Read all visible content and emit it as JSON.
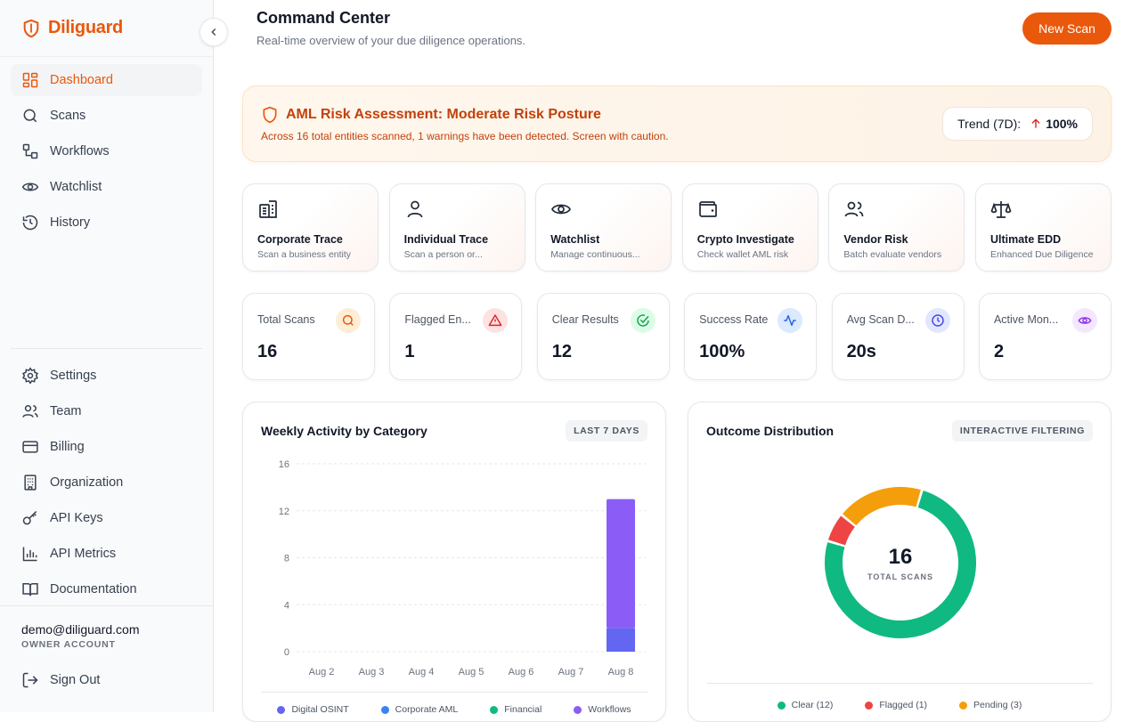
{
  "sidebar": {
    "brand": "Diliguard",
    "nav": [
      {
        "label": "Dashboard",
        "icon": "dashboard-icon",
        "active": true
      },
      {
        "label": "Scans",
        "icon": "search-icon"
      },
      {
        "label": "Workflows",
        "icon": "workflow-icon"
      },
      {
        "label": "Watchlist",
        "icon": "eye-icon"
      },
      {
        "label": "History",
        "icon": "history-icon"
      }
    ],
    "secondary": [
      {
        "label": "Settings",
        "icon": "gear-icon"
      },
      {
        "label": "Team",
        "icon": "team-icon"
      },
      {
        "label": "Billing",
        "icon": "credit-card-icon"
      },
      {
        "label": "Organization",
        "icon": "building-icon"
      },
      {
        "label": "API Keys",
        "icon": "key-icon"
      },
      {
        "label": "API Metrics",
        "icon": "bar-chart-icon"
      },
      {
        "label": "Documentation",
        "icon": "book-icon"
      }
    ],
    "user": {
      "email": "demo@diliguard.com",
      "role": "OWNER ACCOUNT"
    },
    "signout": "Sign Out"
  },
  "header": {
    "title": "Command Center",
    "subtitle": "Real-time overview of your due diligence operations.",
    "new_scan": "New Scan"
  },
  "alert": {
    "title": "AML Risk Assessment: Moderate Risk Posture",
    "description": "Across 16 total entities scanned, 1 warnings have been detected. Screen with caution.",
    "trend_label": "Trend (7D):",
    "trend_value": "100%"
  },
  "actions": [
    {
      "title": "Corporate Trace",
      "subtitle": "Scan a business entity",
      "icon": "building-icon"
    },
    {
      "title": "Individual Trace",
      "subtitle": "Scan a person or...",
      "icon": "person-icon"
    },
    {
      "title": "Watchlist",
      "subtitle": "Manage continuous...",
      "icon": "eye-icon"
    },
    {
      "title": "Crypto Investigate",
      "subtitle": "Check wallet AML risk",
      "icon": "wallet-icon"
    },
    {
      "title": "Vendor Risk",
      "subtitle": "Batch evaluate vendors",
      "icon": "users-icon"
    },
    {
      "title": "Ultimate EDD",
      "subtitle": "Enhanced Due Diligence",
      "icon": "scale-icon"
    }
  ],
  "stats": [
    {
      "label": "Total Scans",
      "value": "16",
      "icon": "search-icon",
      "color": "#ea580c",
      "bg": "#ffedd5"
    },
    {
      "label": "Flagged En...",
      "value": "1",
      "icon": "alert-triangle-icon",
      "color": "#dc2626",
      "bg": "#fee2e2"
    },
    {
      "label": "Clear Results",
      "value": "12",
      "icon": "check-circle-icon",
      "color": "#16a34a",
      "bg": "#dcfce7"
    },
    {
      "label": "Success Rate",
      "value": "100%",
      "icon": "activity-icon",
      "color": "#2563eb",
      "bg": "#dbeafe"
    },
    {
      "label": "Avg Scan D...",
      "value": "20s",
      "icon": "clock-icon",
      "color": "#4f46e5",
      "bg": "#e0e7ff"
    },
    {
      "label": "Active Mon...",
      "value": "2",
      "icon": "eye-icon",
      "color": "#9333ea",
      "bg": "#f3e8ff"
    }
  ],
  "weekly": {
    "title": "Weekly Activity by Category",
    "badge": "LAST 7 DAYS"
  },
  "outcome": {
    "title": "Outcome Distribution",
    "badge": "INTERACTIVE FILTERING",
    "center_value": "16",
    "center_label": "TOTAL SCANS"
  },
  "chart_data": [
    {
      "type": "bar",
      "title": "Weekly Activity by Category",
      "categories": [
        "Aug 2",
        "Aug 3",
        "Aug 4",
        "Aug 5",
        "Aug 6",
        "Aug 7",
        "Aug 8"
      ],
      "yticks": [
        0,
        4,
        8,
        12,
        16
      ],
      "ylim": [
        0,
        16
      ],
      "stacked": true,
      "series": [
        {
          "name": "Digital OSINT",
          "color": "#6366f1",
          "values": [
            0,
            0,
            0,
            0,
            0,
            0,
            2
          ]
        },
        {
          "name": "Corporate AML",
          "color": "#3b82f6",
          "values": [
            0,
            0,
            0,
            0,
            0,
            0,
            0
          ]
        },
        {
          "name": "Financial",
          "color": "#10b981",
          "values": [
            0,
            0,
            0,
            0,
            0,
            0,
            0
          ]
        },
        {
          "name": "Workflows",
          "color": "#8b5cf6",
          "values": [
            0,
            0,
            0,
            0,
            0,
            0,
            11
          ]
        }
      ],
      "legend": "bottom"
    },
    {
      "type": "pie",
      "title": "Outcome Distribution",
      "slices": [
        {
          "label": "Clear (12)",
          "value": 12,
          "color": "#10b981"
        },
        {
          "label": "Flagged (1)",
          "value": 1,
          "color": "#ef4444"
        },
        {
          "label": "Pending (3)",
          "value": 3,
          "color": "#f59e0b"
        }
      ],
      "legend": "bottom"
    }
  ]
}
